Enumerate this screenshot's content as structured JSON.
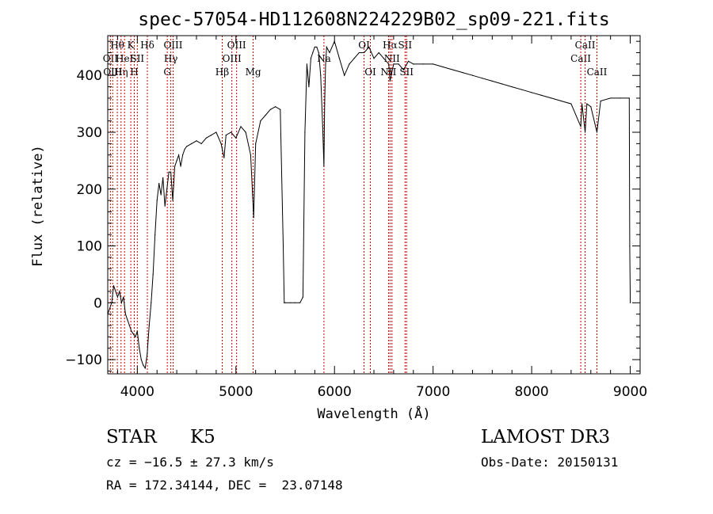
{
  "chart_data": {
    "type": "line",
    "title": "spec-57054-HD112608N224229B02_sp09-221.fits",
    "xlabel": "Wavelength (Å)",
    "ylabel": "Flux (relative)",
    "xlim": [
      3700,
      9100
    ],
    "ylim": [
      -125,
      470
    ],
    "xticks": [
      4000,
      5000,
      6000,
      7000,
      8000,
      9000
    ],
    "yticks": [
      -100,
      0,
      100,
      200,
      300,
      400
    ],
    "grid": false,
    "legend": "none",
    "line_color": "#000000",
    "marker_color": "#cc0000",
    "series": [
      {
        "x": [
          3700,
          3720,
          3740,
          3760,
          3780,
          3800,
          3820,
          3840,
          3860,
          3880,
          3900,
          3920,
          3940,
          3960,
          3980,
          4000,
          4020,
          4040,
          4060,
          4080,
          4100,
          4120,
          4140,
          4160,
          4180,
          4200,
          4220,
          4240,
          4260,
          4280,
          4300,
          4320,
          4340,
          4360,
          4380,
          4400,
          4420,
          4440,
          4460,
          4480,
          4500,
          4550,
          4600,
          4650,
          4700,
          4750,
          4800,
          4850,
          4880,
          4900,
          4950,
          5000,
          5050,
          5100,
          5150,
          5180,
          5200,
          5250,
          5300,
          5350,
          5400,
          5450,
          5480,
          5490,
          5500,
          5550,
          5600,
          5650,
          5680,
          5700,
          5720,
          5740,
          5760,
          5780,
          5800,
          5820,
          5840,
          5860,
          5880,
          5893,
          5900,
          5910,
          5920,
          5950,
          6000,
          6050,
          6100,
          6150,
          6200,
          6250,
          6300,
          6350,
          6400,
          6450,
          6500,
          6550,
          6563,
          6600,
          6650,
          6700,
          6750,
          6800,
          6900,
          7000,
          7100,
          7200,
          7300,
          7400,
          7500,
          7600,
          7700,
          7800,
          7900,
          8000,
          8100,
          8200,
          8300,
          8400,
          8498,
          8510,
          8542,
          8560,
          8600,
          8662,
          8700,
          8800,
          8900,
          8990,
          8995,
          9000
        ],
        "y": [
          -20,
          -10,
          0,
          30,
          20,
          10,
          20,
          0,
          10,
          -20,
          -30,
          -40,
          -50,
          -55,
          -60,
          -50,
          -80,
          -100,
          -110,
          -115,
          -90,
          -40,
          0,
          50,
          120,
          180,
          210,
          190,
          220,
          170,
          200,
          230,
          230,
          180,
          240,
          250,
          260,
          240,
          260,
          270,
          275,
          280,
          285,
          280,
          290,
          295,
          300,
          280,
          255,
          295,
          300,
          290,
          310,
          300,
          260,
          150,
          280,
          320,
          330,
          340,
          345,
          340,
          100,
          0,
          0,
          0,
          0,
          0,
          10,
          300,
          420,
          380,
          430,
          440,
          450,
          450,
          440,
          400,
          310,
          240,
          350,
          420,
          450,
          440,
          460,
          430,
          400,
          420,
          430,
          440,
          440,
          450,
          430,
          440,
          430,
          420,
          390,
          420,
          420,
          410,
          425,
          420,
          420,
          420,
          415,
          410,
          405,
          400,
          395,
          390,
          385,
          380,
          375,
          370,
          365,
          360,
          355,
          350,
          310,
          350,
          300,
          350,
          345,
          300,
          355,
          360,
          360,
          360,
          100,
          0
        ]
      }
    ],
    "line_markers": [
      {
        "x": 3727,
        "labels": [
          "OII"
        ],
        "rows": [
          1
        ]
      },
      {
        "x": 3750,
        "labels": [
          "OIII"
        ],
        "rows": [
          2
        ]
      },
      {
        "x": 3797,
        "labels": [
          "Hθ"
        ],
        "rows": [
          0
        ]
      },
      {
        "x": 3835,
        "labels": [
          "Hη"
        ],
        "rows": [
          2
        ]
      },
      {
        "x": 3870,
        "labels": [
          "HeI"
        ],
        "rows": [
          1
        ]
      },
      {
        "x": 3934,
        "labels": [
          "K"
        ],
        "rows": [
          0
        ]
      },
      {
        "x": 3969,
        "labels": [
          "H"
        ],
        "rows": [
          2
        ]
      },
      {
        "x": 4000,
        "labels": [
          "SII"
        ],
        "rows": [
          1
        ]
      },
      {
        "x": 4102,
        "labels": [
          "Hδ"
        ],
        "rows": [
          0
        ]
      },
      {
        "x": 4304,
        "labels": [
          "G"
        ],
        "rows": [
          2
        ]
      },
      {
        "x": 4340,
        "labels": [
          "Hγ"
        ],
        "rows": [
          1
        ]
      },
      {
        "x": 4363,
        "labels": [
          "OIII"
        ],
        "rows": [
          0
        ]
      },
      {
        "x": 4861,
        "labels": [
          "Hβ"
        ],
        "rows": [
          2
        ]
      },
      {
        "x": 4959,
        "labels": [
          "OIII"
        ],
        "rows": [
          1
        ]
      },
      {
        "x": 5007,
        "labels": [
          "OIII"
        ],
        "rows": [
          0
        ]
      },
      {
        "x": 5175,
        "labels": [
          "Mg"
        ],
        "rows": [
          2
        ]
      },
      {
        "x": 5893,
        "labels": [
          "Na"
        ],
        "rows": [
          1
        ]
      },
      {
        "x": 6300,
        "labels": [
          "OI"
        ],
        "rows": [
          0
        ]
      },
      {
        "x": 6364,
        "labels": [
          "OI"
        ],
        "rows": [
          2
        ]
      },
      {
        "x": 6548,
        "labels": [
          "NII"
        ],
        "rows": [
          2
        ]
      },
      {
        "x": 6563,
        "labels": [
          "Hα"
        ],
        "rows": [
          0
        ]
      },
      {
        "x": 6583,
        "labels": [
          "NII"
        ],
        "rows": [
          1
        ]
      },
      {
        "x": 6716,
        "labels": [
          "SII"
        ],
        "rows": [
          0
        ]
      },
      {
        "x": 6731,
        "labels": [
          "SII"
        ],
        "rows": [
          2
        ]
      },
      {
        "x": 8498,
        "labels": [
          "CaII"
        ],
        "rows": [
          1
        ]
      },
      {
        "x": 8542,
        "labels": [
          "CaII"
        ],
        "rows": [
          0
        ]
      },
      {
        "x": 8662,
        "labels": [
          "CaII"
        ],
        "rows": [
          2
        ]
      }
    ]
  },
  "info": {
    "object_class": "STAR",
    "subclass": "K5",
    "survey": "LAMOST DR3",
    "redshift": "cz = −16.5 ± 27.3 km/s",
    "obs_date": "Obs-Date: 20150131",
    "coords": "RA = 172.34144, DEC =  23.07148"
  }
}
